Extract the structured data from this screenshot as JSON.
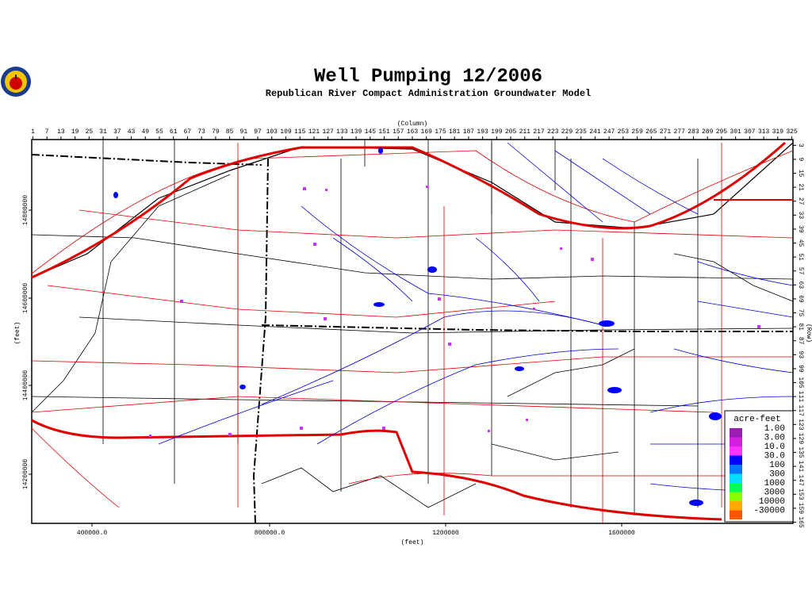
{
  "header": {
    "title": "Well Pumping 12/2006",
    "subtitle": "Republican River Compact Administration Groundwater Model"
  },
  "top_axis": {
    "label": "(Column)",
    "ticks": [
      1,
      7,
      13,
      19,
      25,
      31,
      37,
      43,
      49,
      55,
      61,
      67,
      73,
      79,
      85,
      91,
      97,
      103,
      109,
      115,
      121,
      127,
      133,
      139,
      145,
      151,
      157,
      163,
      169,
      175,
      181,
      187,
      193,
      199,
      205,
      211,
      217,
      223,
      229,
      235,
      241,
      247,
      253,
      259,
      265,
      271,
      277,
      283,
      289,
      295,
      301,
      307,
      313,
      319,
      325
    ]
  },
  "right_axis": {
    "label": "(Row)",
    "ticks": [
      3,
      9,
      15,
      21,
      27,
      33,
      39,
      45,
      51,
      57,
      63,
      69,
      75,
      81,
      87,
      93,
      99,
      105,
      111,
      117,
      123,
      129,
      135,
      141,
      147,
      153,
      159,
      165
    ]
  },
  "bottom_axis": {
    "label": "(feet)",
    "ticks": [
      "400000.0",
      "800000.0",
      1200000,
      1600000
    ]
  },
  "left_axis": {
    "label": "(feet)",
    "ticks": [
      14800000,
      14600000,
      14400000,
      14200000
    ]
  },
  "legend": {
    "title": "acre-feet",
    "items": [
      {
        "label": "1.00",
        "color": "#9a1fb0"
      },
      {
        "label": "3.00",
        "color": "#d21fe0"
      },
      {
        "label": "10.0",
        "color": "#ff33ff"
      },
      {
        "label": "30.0",
        "color": "#0000ff"
      },
      {
        "label": "100",
        "color": "#0077ff"
      },
      {
        "label": "300",
        "color": "#00ddff"
      },
      {
        "label": "1000",
        "color": "#00ff55"
      },
      {
        "label": "3000",
        "color": "#88ff00"
      },
      {
        "label": "10000",
        "color": "#ffaa00"
      },
      {
        "label": "-30000",
        "color": "#ff5500"
      }
    ]
  }
}
